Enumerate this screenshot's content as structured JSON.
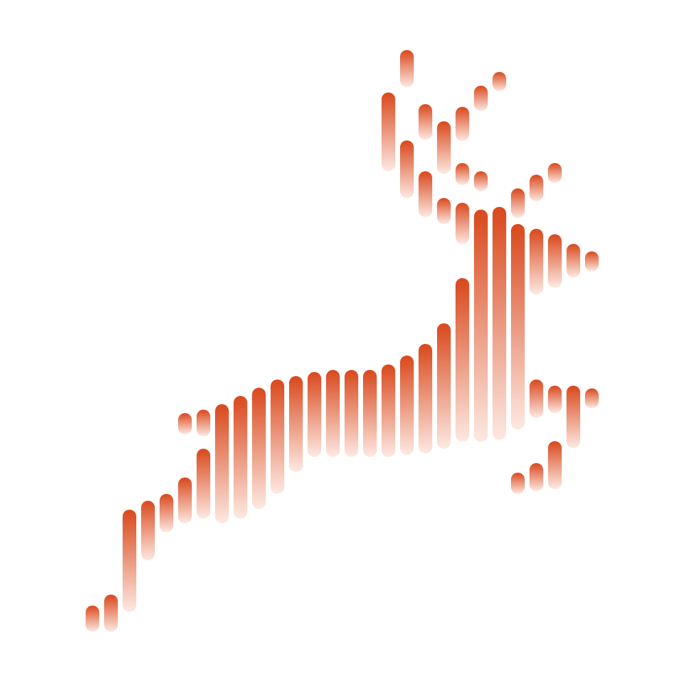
{
  "logo": {
    "icon": "leaping-deer-icon",
    "colors": {
      "primary": "#d9481c",
      "fade": "#fde9e2",
      "background": "#ffffff"
    }
  }
}
